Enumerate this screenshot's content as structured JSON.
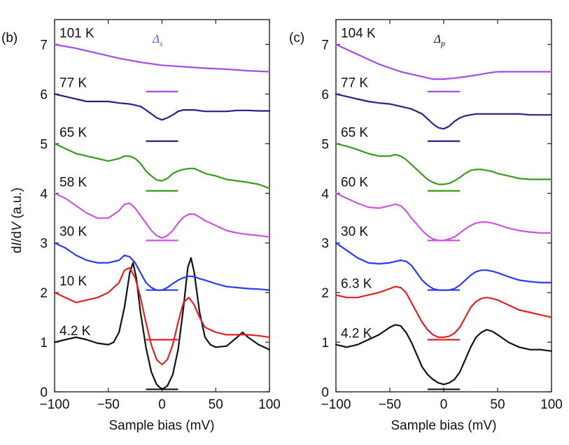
{
  "chart_data": [
    {
      "type": "line",
      "panel_label": "(b)",
      "gap_symbol": "Δ",
      "gap_subscript": "s",
      "gap_color": "#5b5bff",
      "xlabel": "Sample bias (mV)",
      "ylabel_parts": [
        "d",
        "I",
        "/d",
        "V",
        " (a.u.)"
      ],
      "xlim": [
        -100,
        100
      ],
      "ylim": [
        0,
        7.5
      ],
      "xticks": [
        "−100",
        "−50",
        "0",
        "50",
        "100"
      ],
      "xtick_values": [
        -100,
        -50,
        0,
        50,
        100
      ],
      "yticks": [
        "0",
        "1",
        "2",
        "3",
        "4",
        "5",
        "6",
        "7"
      ],
      "ytick_values": [
        0,
        1,
        2,
        3,
        4,
        5,
        6,
        7
      ],
      "series": [
        {
          "name": "4.2 K",
          "color": "#111111",
          "marker_y": 0.05,
          "x": [
            -100,
            -90,
            -80,
            -70,
            -60,
            -50,
            -45,
            -40,
            -35,
            -30,
            -27,
            -24,
            -20,
            -15,
            -10,
            -5,
            0,
            5,
            10,
            15,
            20,
            24,
            27,
            30,
            35,
            40,
            45,
            50,
            60,
            70,
            75,
            80,
            90,
            100
          ],
          "y": [
            1.0,
            1.05,
            1.1,
            1.05,
            0.98,
            0.95,
            1.0,
            1.2,
            1.7,
            2.4,
            2.6,
            2.3,
            1.6,
            0.9,
            0.4,
            0.15,
            0.05,
            0.12,
            0.35,
            0.85,
            1.7,
            2.5,
            2.7,
            2.4,
            1.6,
            1.1,
            0.95,
            0.9,
            0.92,
            1.1,
            1.2,
            1.1,
            0.95,
            0.85
          ]
        },
        {
          "name": "10 K",
          "color": "#dd2222",
          "marker_y": 1.05,
          "x": [
            -100,
            -90,
            -80,
            -70,
            -60,
            -50,
            -40,
            -35,
            -30,
            -25,
            -20,
            -15,
            -10,
            -5,
            0,
            5,
            10,
            15,
            20,
            25,
            30,
            35,
            40,
            50,
            60,
            70,
            80,
            90,
            100
          ],
          "y": [
            2.0,
            1.9,
            1.8,
            1.85,
            1.9,
            2.0,
            2.2,
            2.45,
            2.5,
            2.3,
            1.9,
            1.4,
            0.95,
            0.65,
            0.55,
            0.65,
            0.95,
            1.4,
            1.8,
            1.9,
            1.75,
            1.5,
            1.3,
            1.2,
            1.15,
            1.15,
            1.15,
            1.13,
            1.1
          ]
        },
        {
          "name": "30 K",
          "color": "#2a3cf0",
          "marker_y": 2.05,
          "x": [
            -100,
            -90,
            -80,
            -70,
            -60,
            -50,
            -40,
            -35,
            -30,
            -25,
            -20,
            -15,
            -10,
            -5,
            0,
            5,
            10,
            15,
            20,
            25,
            30,
            35,
            40,
            50,
            60,
            70,
            80,
            90,
            100
          ],
          "y": [
            3.0,
            2.9,
            2.75,
            2.65,
            2.6,
            2.6,
            2.65,
            2.75,
            2.72,
            2.6,
            2.4,
            2.2,
            2.1,
            2.05,
            2.05,
            2.1,
            2.18,
            2.25,
            2.3,
            2.33,
            2.32,
            2.28,
            2.25,
            2.18,
            2.12,
            2.1,
            2.08,
            2.07,
            2.05
          ]
        },
        {
          "name": "58 K",
          "color": "#cc55dd",
          "marker_y": 3.05,
          "x": [
            -100,
            -90,
            -80,
            -70,
            -60,
            -50,
            -40,
            -35,
            -30,
            -25,
            -20,
            -15,
            -10,
            -5,
            0,
            5,
            10,
            15,
            20,
            25,
            30,
            35,
            40,
            50,
            60,
            70,
            80,
            90,
            100
          ],
          "y": [
            4.0,
            3.9,
            3.75,
            3.6,
            3.5,
            3.5,
            3.65,
            3.78,
            3.8,
            3.7,
            3.55,
            3.4,
            3.25,
            3.15,
            3.1,
            3.15,
            3.25,
            3.4,
            3.52,
            3.58,
            3.58,
            3.52,
            3.45,
            3.35,
            3.25,
            3.2,
            3.17,
            3.15,
            3.12
          ]
        },
        {
          "name": "65 K",
          "color": "#3a9a1a",
          "marker_y": 4.05,
          "x": [
            -100,
            -90,
            -80,
            -70,
            -60,
            -50,
            -40,
            -35,
            -30,
            -25,
            -20,
            -15,
            -10,
            -5,
            0,
            5,
            10,
            15,
            20,
            25,
            30,
            35,
            40,
            50,
            60,
            70,
            80,
            90,
            100
          ],
          "y": [
            5.0,
            4.9,
            4.8,
            4.75,
            4.7,
            4.65,
            4.7,
            4.75,
            4.75,
            4.7,
            4.6,
            4.45,
            4.35,
            4.27,
            4.25,
            4.3,
            4.4,
            4.45,
            4.48,
            4.5,
            4.5,
            4.45,
            4.4,
            4.35,
            4.28,
            4.25,
            4.22,
            4.18,
            4.1
          ]
        },
        {
          "name": "77 K",
          "color": "#222288",
          "marker_y": 5.05,
          "x": [
            -100,
            -90,
            -80,
            -70,
            -60,
            -50,
            -40,
            -30,
            -20,
            -15,
            -10,
            -5,
            0,
            5,
            10,
            15,
            20,
            30,
            40,
            50,
            60,
            70,
            80,
            90,
            100
          ],
          "y": [
            6.0,
            5.95,
            5.9,
            5.85,
            5.85,
            5.85,
            5.82,
            5.8,
            5.75,
            5.68,
            5.6,
            5.52,
            5.48,
            5.52,
            5.58,
            5.65,
            5.68,
            5.68,
            5.65,
            5.65,
            5.65,
            5.67,
            5.67,
            5.66,
            5.66
          ]
        },
        {
          "name": "101 K",
          "color": "#a64de8",
          "marker_y": 6.05,
          "x": [
            -100,
            -80,
            -60,
            -40,
            -20,
            0,
            20,
            40,
            60,
            80,
            100
          ],
          "y": [
            7.0,
            6.92,
            6.82,
            6.72,
            6.64,
            6.58,
            6.55,
            6.52,
            6.5,
            6.47,
            6.45
          ]
        }
      ]
    },
    {
      "type": "line",
      "panel_label": "(c)",
      "gap_symbol": "Δ",
      "gap_subscript": "p",
      "gap_color": "#111111",
      "xlabel": "Sample bias (mV)",
      "ylabel_parts": [],
      "xlim": [
        -100,
        100
      ],
      "ylim": [
        0,
        7.5
      ],
      "xticks": [
        "−100",
        "−50",
        "0",
        "50",
        "100"
      ],
      "xtick_values": [
        -100,
        -50,
        0,
        50,
        100
      ],
      "yticks": [
        "0",
        "1",
        "2",
        "3",
        "4",
        "5",
        "6",
        "7"
      ],
      "ytick_values": [
        0,
        1,
        2,
        3,
        4,
        5,
        6,
        7
      ],
      "series": [
        {
          "name": "4.2 K",
          "color": "#111111",
          "marker_y": 0.05,
          "x": [
            -100,
            -90,
            -80,
            -70,
            -60,
            -50,
            -45,
            -40,
            -35,
            -30,
            -25,
            -20,
            -15,
            -10,
            -5,
            0,
            5,
            10,
            15,
            20,
            25,
            30,
            35,
            40,
            45,
            50,
            60,
            70,
            80,
            90,
            100
          ],
          "y": [
            0.95,
            0.9,
            0.95,
            1.05,
            1.15,
            1.3,
            1.35,
            1.33,
            1.2,
            1.0,
            0.75,
            0.5,
            0.35,
            0.25,
            0.18,
            0.15,
            0.18,
            0.25,
            0.4,
            0.65,
            0.9,
            1.1,
            1.2,
            1.25,
            1.22,
            1.15,
            1.0,
            0.9,
            0.85,
            0.85,
            0.82
          ]
        },
        {
          "name": "6.3 K",
          "color": "#dd2222",
          "marker_y": 1.05,
          "x": [
            -100,
            -90,
            -80,
            -70,
            -60,
            -50,
            -45,
            -40,
            -35,
            -30,
            -25,
            -20,
            -15,
            -10,
            -5,
            0,
            5,
            10,
            15,
            20,
            25,
            30,
            35,
            40,
            45,
            50,
            60,
            70,
            80,
            90,
            100
          ],
          "y": [
            1.95,
            1.9,
            1.9,
            1.95,
            2.0,
            2.08,
            2.12,
            2.1,
            2.0,
            1.8,
            1.6,
            1.4,
            1.25,
            1.15,
            1.1,
            1.1,
            1.12,
            1.18,
            1.3,
            1.5,
            1.7,
            1.82,
            1.88,
            1.9,
            1.88,
            1.85,
            1.75,
            1.65,
            1.6,
            1.55,
            1.5
          ]
        },
        {
          "name": "30 K",
          "color": "#2a3cf0",
          "marker_y": 2.05,
          "x": [
            -100,
            -90,
            -80,
            -70,
            -60,
            -50,
            -40,
            -35,
            -30,
            -25,
            -20,
            -15,
            -10,
            -5,
            0,
            5,
            10,
            15,
            20,
            25,
            30,
            35,
            40,
            45,
            50,
            60,
            70,
            80,
            90,
            100
          ],
          "y": [
            3.0,
            2.85,
            2.7,
            2.6,
            2.58,
            2.6,
            2.65,
            2.63,
            2.55,
            2.4,
            2.25,
            2.15,
            2.08,
            2.05,
            2.05,
            2.05,
            2.08,
            2.15,
            2.25,
            2.35,
            2.42,
            2.45,
            2.45,
            2.43,
            2.4,
            2.32,
            2.25,
            2.22,
            2.2,
            2.2
          ]
        },
        {
          "name": "60 K",
          "color": "#cc55dd",
          "marker_y": 3.05,
          "x": [
            -100,
            -90,
            -80,
            -70,
            -60,
            -50,
            -45,
            -40,
            -35,
            -30,
            -25,
            -20,
            -15,
            -10,
            -5,
            0,
            5,
            10,
            15,
            20,
            25,
            30,
            35,
            40,
            45,
            50,
            60,
            70,
            80,
            90,
            100
          ],
          "y": [
            4.0,
            3.9,
            3.8,
            3.72,
            3.7,
            3.75,
            3.78,
            3.75,
            3.65,
            3.5,
            3.38,
            3.25,
            3.15,
            3.08,
            3.05,
            3.05,
            3.08,
            3.12,
            3.2,
            3.28,
            3.35,
            3.4,
            3.42,
            3.42,
            3.4,
            3.37,
            3.3,
            3.25,
            3.22,
            3.2,
            3.2
          ]
        },
        {
          "name": "65 K",
          "color": "#3a9a1a",
          "marker_y": 4.05,
          "x": [
            -100,
            -90,
            -80,
            -70,
            -60,
            -50,
            -45,
            -40,
            -35,
            -30,
            -25,
            -20,
            -15,
            -10,
            -5,
            0,
            5,
            10,
            15,
            20,
            25,
            30,
            35,
            40,
            45,
            50,
            60,
            70,
            80,
            90,
            100
          ],
          "y": [
            5.0,
            4.95,
            4.88,
            4.8,
            4.75,
            4.75,
            4.78,
            4.75,
            4.68,
            4.58,
            4.48,
            4.38,
            4.28,
            4.22,
            4.18,
            4.18,
            4.2,
            4.25,
            4.32,
            4.4,
            4.46,
            4.48,
            4.48,
            4.46,
            4.44,
            4.4,
            4.35,
            4.3,
            4.28,
            4.28,
            4.28
          ]
        },
        {
          "name": "77 K",
          "color": "#222288",
          "marker_y": 5.05,
          "x": [
            -100,
            -90,
            -80,
            -70,
            -60,
            -50,
            -40,
            -30,
            -20,
            -15,
            -10,
            -5,
            0,
            5,
            10,
            15,
            20,
            30,
            40,
            50,
            60,
            70,
            80,
            90,
            100
          ],
          "y": [
            6.0,
            5.95,
            5.9,
            5.85,
            5.82,
            5.8,
            5.75,
            5.7,
            5.6,
            5.5,
            5.4,
            5.32,
            5.3,
            5.35,
            5.45,
            5.52,
            5.56,
            5.6,
            5.6,
            5.6,
            5.6,
            5.6,
            5.58,
            5.58,
            5.58
          ]
        },
        {
          "name": "104 K",
          "color": "#a64de8",
          "marker_y": 6.05,
          "x": [
            -100,
            -80,
            -60,
            -40,
            -20,
            -10,
            0,
            10,
            20,
            30,
            40,
            50,
            60,
            70,
            80,
            90,
            100
          ],
          "y": [
            7.0,
            6.8,
            6.6,
            6.45,
            6.35,
            6.3,
            6.3,
            6.32,
            6.35,
            6.38,
            6.42,
            6.45,
            6.45,
            6.45,
            6.45,
            6.45,
            6.45
          ]
        }
      ]
    }
  ]
}
